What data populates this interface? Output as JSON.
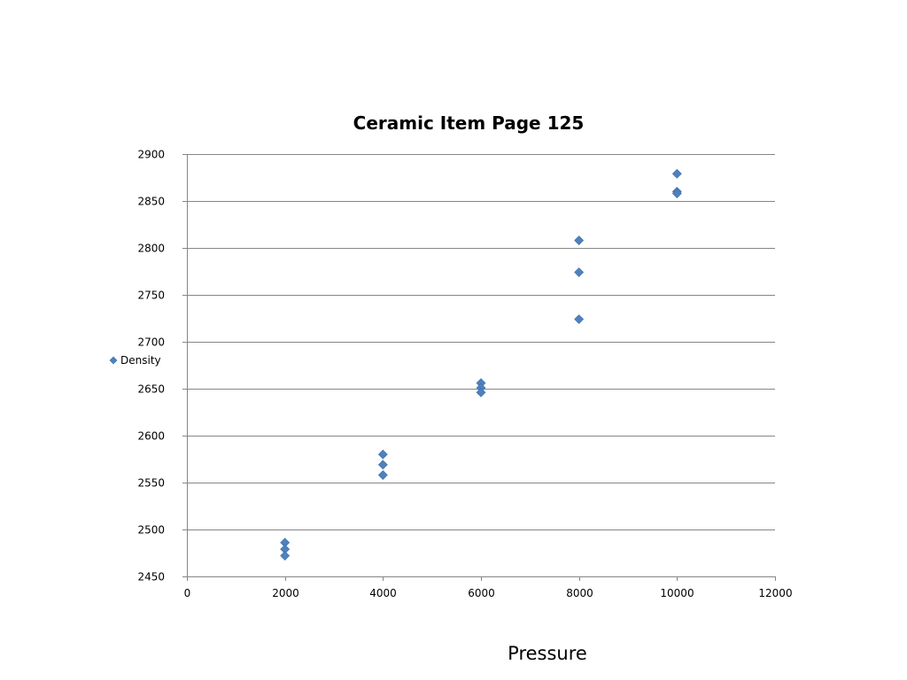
{
  "chart_data": {
    "type": "scatter",
    "title": "Ceramic Item Page 125",
    "xlabel": "Pressure",
    "ylabel": "",
    "xlim": [
      0,
      12000
    ],
    "ylim": [
      2450,
      2900
    ],
    "x_ticks": [
      0,
      2000,
      4000,
      6000,
      8000,
      10000,
      12000
    ],
    "y_ticks": [
      2450,
      2500,
      2550,
      2600,
      2650,
      2700,
      2750,
      2800,
      2850,
      2900
    ],
    "grid": {
      "horizontal": true,
      "vertical": false
    },
    "legend": {
      "placement": "left",
      "entries": [
        "Density"
      ]
    },
    "series": [
      {
        "name": "Density",
        "color": "#4f81bd",
        "marker": "diamond",
        "points": [
          {
            "x": 2000,
            "y": 2486
          },
          {
            "x": 2000,
            "y": 2479
          },
          {
            "x": 2000,
            "y": 2472
          },
          {
            "x": 4000,
            "y": 2580
          },
          {
            "x": 4000,
            "y": 2569
          },
          {
            "x": 4000,
            "y": 2558
          },
          {
            "x": 6000,
            "y": 2656
          },
          {
            "x": 6000,
            "y": 2651
          },
          {
            "x": 6000,
            "y": 2646
          },
          {
            "x": 8000,
            "y": 2808
          },
          {
            "x": 8000,
            "y": 2774
          },
          {
            "x": 8000,
            "y": 2724
          },
          {
            "x": 10000,
            "y": 2879
          },
          {
            "x": 10000,
            "y": 2860
          },
          {
            "x": 10000,
            "y": 2858
          }
        ]
      }
    ],
    "colors": {
      "axis": "#868686",
      "grid": "#868686",
      "marker": "#4f81bd",
      "text": "#000000"
    }
  }
}
